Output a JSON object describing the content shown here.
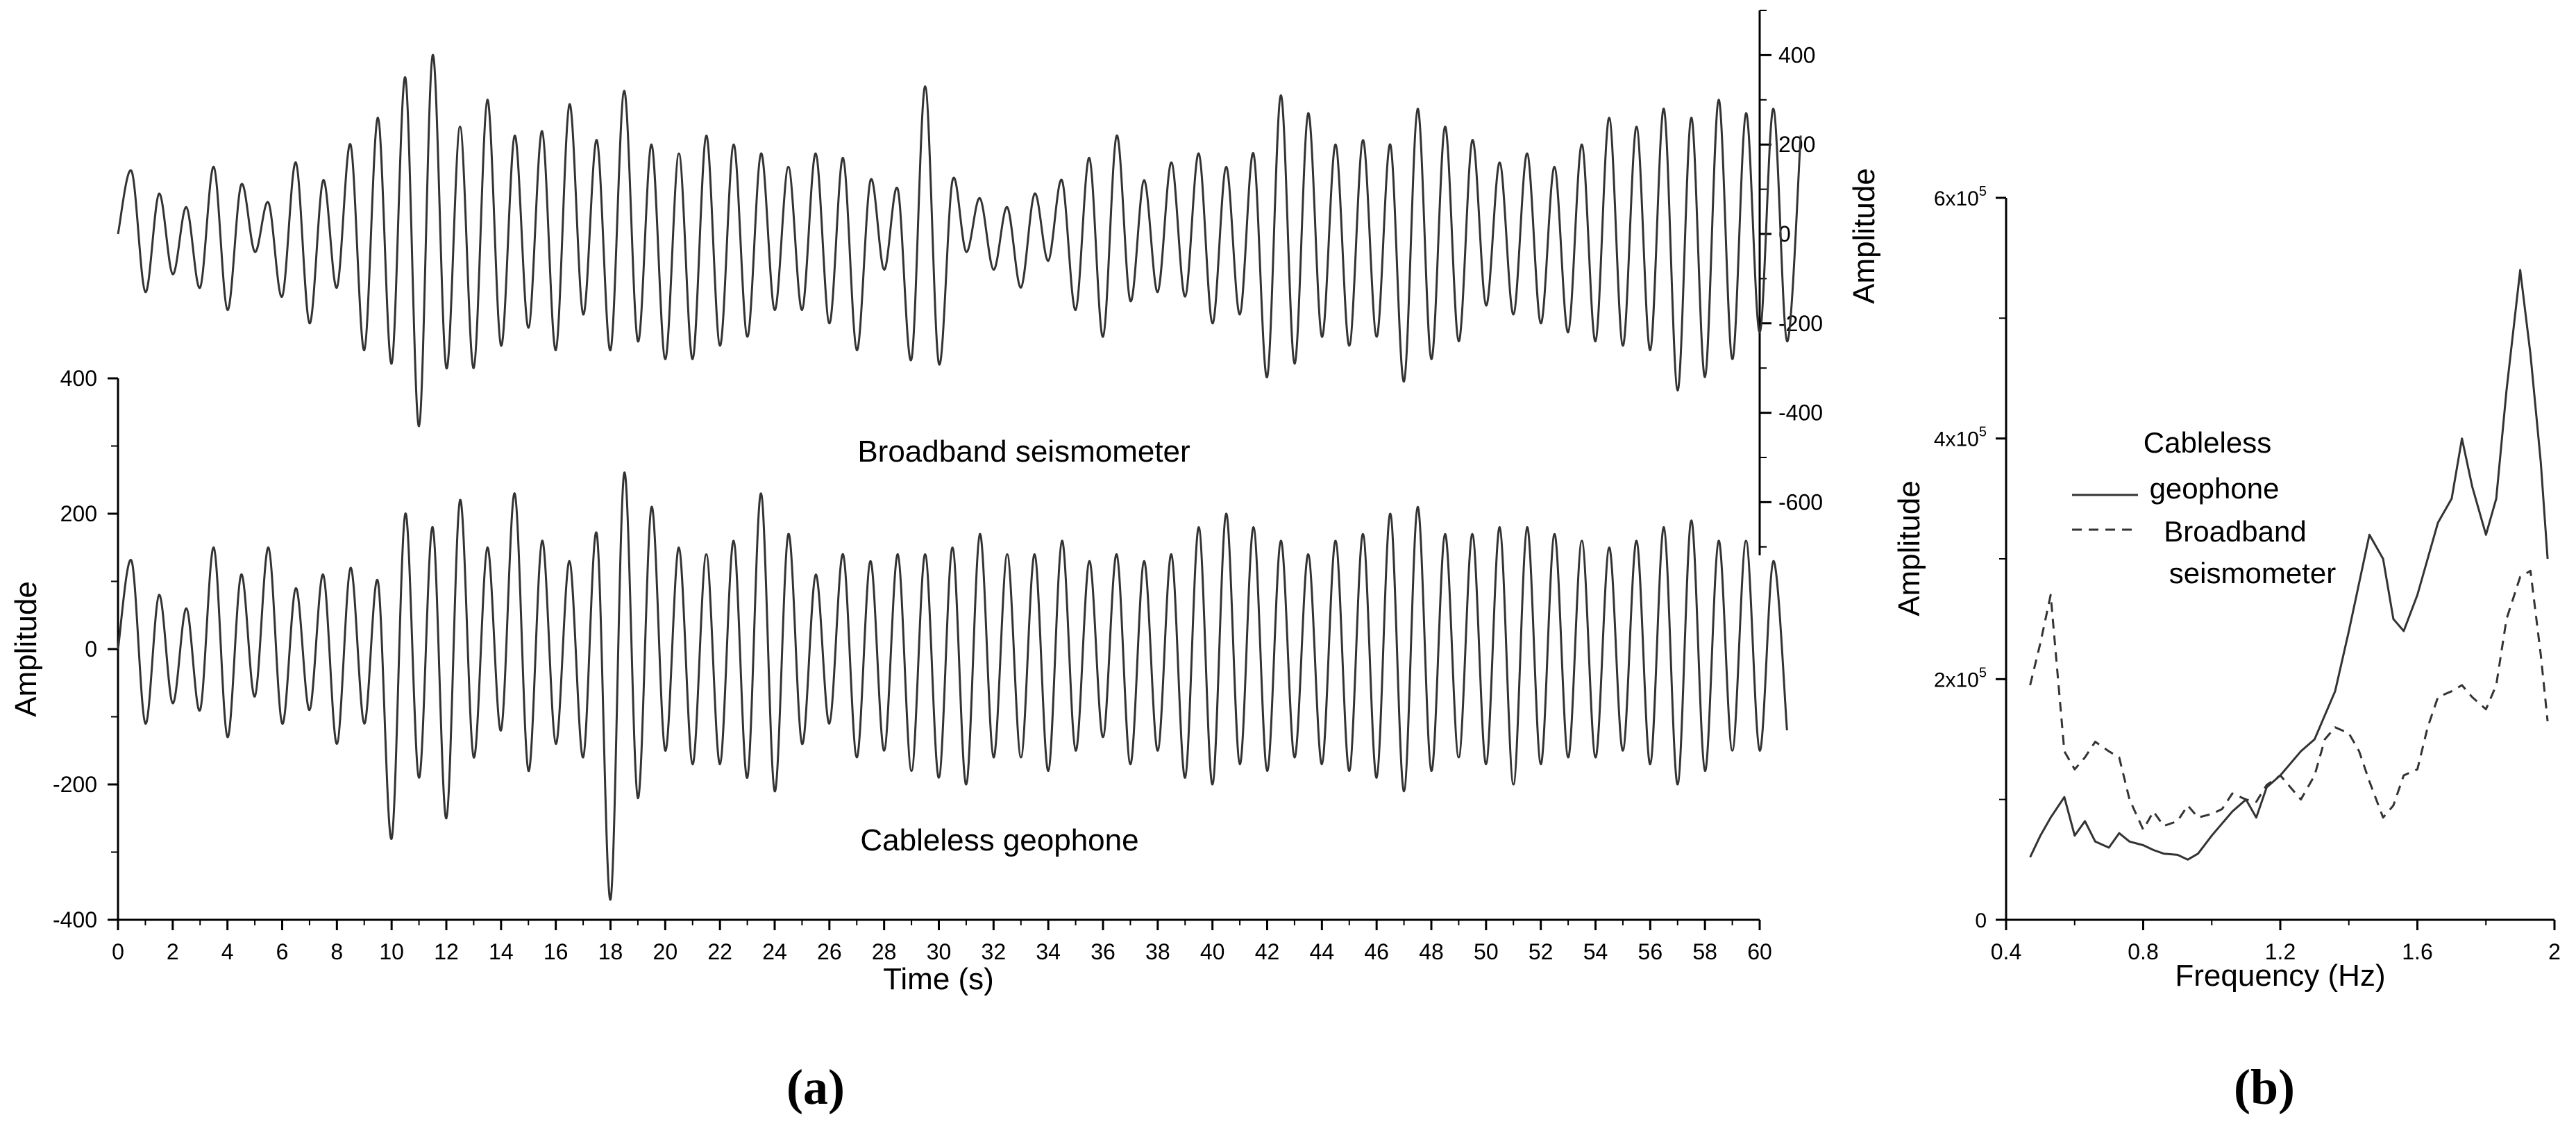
{
  "chart_data": [
    {
      "panel": "(a)",
      "type": "line",
      "xlabel": "Time (s)",
      "xlim": [
        0,
        60
      ],
      "xticks": [
        "0",
        "2",
        "4",
        "6",
        "8",
        "10",
        "12",
        "14",
        "16",
        "18",
        "20",
        "22",
        "24",
        "26",
        "28",
        "30",
        "32",
        "34",
        "36",
        "38",
        "40",
        "42",
        "44",
        "46",
        "48",
        "50",
        "52",
        "54",
        "56",
        "58",
        "60"
      ],
      "y_left": {
        "label": "Amplitude",
        "range": [
          -400,
          400
        ],
        "ticks": [
          "400",
          "200",
          "0",
          "-200",
          "-400"
        ]
      },
      "y_right": {
        "label": "Amplitude",
        "range": [
          -700,
          500
        ],
        "ticks": [
          "400",
          "200",
          "0",
          "-200",
          "-400",
          "-600"
        ]
      },
      "annotations": [
        "Broadband seismometer",
        "Cableless geophone"
      ],
      "series": [
        {
          "name": "Broadband seismometer",
          "axis": "right",
          "sampling_interval_s": 0.5,
          "values": [
            0,
            140,
            -130,
            90,
            -90,
            60,
            -120,
            150,
            -170,
            110,
            -40,
            70,
            -140,
            160,
            -200,
            120,
            -120,
            200,
            -260,
            260,
            -290,
            350,
            -430,
            400,
            -300,
            240,
            -300,
            300,
            -250,
            220,
            -210,
            230,
            -260,
            290,
            -180,
            210,
            -260,
            320,
            -240,
            200,
            -280,
            180,
            -280,
            220,
            -250,
            200,
            -230,
            180,
            -170,
            150,
            -170,
            180,
            -200,
            170,
            -260,
            120,
            -80,
            100,
            -280,
            330,
            -290,
            120,
            -40,
            80,
            -80,
            60,
            -120,
            90,
            -60,
            120,
            -170,
            170,
            -230,
            220,
            -150,
            120,
            -130,
            160,
            -140,
            180,
            -200,
            150,
            -180,
            180,
            -320,
            310,
            -290,
            270,
            -230,
            200,
            -250,
            210,
            -230,
            200,
            -330,
            280,
            -280,
            240,
            -240,
            210,
            -160,
            160,
            -180,
            180,
            -200,
            150,
            -220,
            200,
            -240,
            260,
            -250,
            240,
            -260,
            280,
            -350,
            260,
            -320,
            300,
            -280,
            270,
            -220,
            280,
            -240,
            220
          ]
        },
        {
          "name": "Cableless geophone",
          "axis": "left",
          "sampling_interval_s": 0.5,
          "values": [
            0,
            130,
            -110,
            80,
            -80,
            60,
            -90,
            150,
            -130,
            110,
            -70,
            150,
            -110,
            90,
            -90,
            110,
            -140,
            120,
            -110,
            100,
            -280,
            200,
            -190,
            180,
            -250,
            220,
            -160,
            150,
            -120,
            230,
            -180,
            160,
            -140,
            130,
            -160,
            170,
            -370,
            260,
            -220,
            210,
            -150,
            150,
            -170,
            140,
            -170,
            160,
            -190,
            230,
            -210,
            170,
            -140,
            110,
            -110,
            140,
            -160,
            130,
            -150,
            140,
            -180,
            140,
            -190,
            150,
            -200,
            170,
            -160,
            140,
            -160,
            140,
            -180,
            160,
            -150,
            130,
            -130,
            140,
            -170,
            130,
            -150,
            140,
            -190,
            180,
            -200,
            200,
            -170,
            180,
            -180,
            160,
            -160,
            140,
            -170,
            160,
            -180,
            170,
            -190,
            200,
            -210,
            210,
            -180,
            170,
            -160,
            170,
            -170,
            180,
            -200,
            180,
            -170,
            170,
            -160,
            160,
            -160,
            150,
            -150,
            160,
            -170,
            180,
            -200,
            190,
            -180,
            160,
            -150,
            160,
            -150,
            130,
            -120
          ]
        }
      ]
    },
    {
      "panel": "(b)",
      "type": "line",
      "xlabel": "Frequency (Hz)",
      "ylabel": "Amplitude",
      "xlim": [
        0.4,
        2.0
      ],
      "ylim": [
        0,
        600000
      ],
      "xticks": [
        "0.4",
        "0.8",
        "1.2",
        "1.6",
        "2"
      ],
      "yticks": [
        {
          "base": "0",
          "exp": ""
        },
        {
          "base": "2x10",
          "exp": "5"
        },
        {
          "base": "4x10",
          "exp": "5"
        },
        {
          "base": "6x10",
          "exp": "5"
        }
      ],
      "legend": {
        "position": "upper-left",
        "entries": [
          {
            "line1": "Cableless",
            "line2": "geophone"
          },
          {
            "line1": "Broadband",
            "line2": "seismometer"
          }
        ]
      },
      "series": [
        {
          "name": "Cableless geophone",
          "style": "solid",
          "x": [
            0.47,
            0.5,
            0.53,
            0.57,
            0.6,
            0.63,
            0.66,
            0.7,
            0.73,
            0.76,
            0.8,
            0.83,
            0.86,
            0.9,
            0.93,
            0.96,
            1.0,
            1.03,
            1.06,
            1.1,
            1.13,
            1.16,
            1.2,
            1.23,
            1.26,
            1.3,
            1.33,
            1.36,
            1.4,
            1.43,
            1.46,
            1.5,
            1.53,
            1.56,
            1.6,
            1.63,
            1.66,
            1.7,
            1.73,
            1.76,
            1.8,
            1.83,
            1.86,
            1.9,
            1.93,
            1.96,
            1.98
          ],
          "values": [
            52000,
            70000,
            85000,
            102000,
            70000,
            82000,
            65000,
            60000,
            72000,
            65000,
            62000,
            58000,
            55000,
            54000,
            50000,
            55000,
            70000,
            80000,
            90000,
            100000,
            85000,
            110000,
            120000,
            130000,
            140000,
            150000,
            170000,
            190000,
            240000,
            280000,
            320000,
            300000,
            250000,
            240000,
            270000,
            300000,
            330000,
            350000,
            400000,
            360000,
            320000,
            350000,
            440000,
            540000,
            470000,
            380000,
            300000
          ]
        },
        {
          "name": "Broadband seismometer",
          "style": "dashed",
          "x": [
            0.47,
            0.5,
            0.53,
            0.57,
            0.6,
            0.63,
            0.66,
            0.7,
            0.73,
            0.76,
            0.8,
            0.83,
            0.86,
            0.9,
            0.93,
            0.96,
            1.0,
            1.03,
            1.06,
            1.1,
            1.13,
            1.16,
            1.2,
            1.23,
            1.26,
            1.3,
            1.33,
            1.36,
            1.4,
            1.43,
            1.46,
            1.5,
            1.53,
            1.56,
            1.6,
            1.63,
            1.66,
            1.7,
            1.73,
            1.76,
            1.8,
            1.83,
            1.86,
            1.9,
            1.93,
            1.96,
            1.98
          ],
          "values": [
            195000,
            230000,
            270000,
            140000,
            125000,
            135000,
            148000,
            140000,
            135000,
            100000,
            75000,
            90000,
            78000,
            82000,
            95000,
            85000,
            88000,
            92000,
            105000,
            100000,
            98000,
            112000,
            120000,
            110000,
            100000,
            120000,
            150000,
            160000,
            155000,
            140000,
            115000,
            85000,
            95000,
            120000,
            125000,
            160000,
            185000,
            190000,
            195000,
            185000,
            175000,
            195000,
            250000,
            285000,
            290000,
            220000,
            165000
          ]
        }
      ]
    }
  ],
  "panel_labels": [
    "(a)",
    "(b)"
  ]
}
